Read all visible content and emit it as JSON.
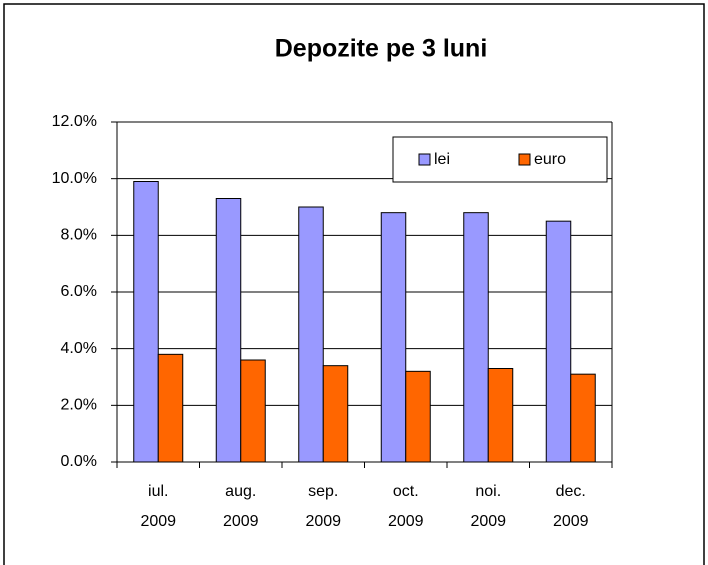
{
  "chart_data": {
    "type": "bar",
    "title": "Depozite pe 3 luni",
    "categories": [
      "iul. 2009",
      "aug. 2009",
      "sep. 2009",
      "oct. 2009",
      "noi. 2009",
      "dec. 2009"
    ],
    "series": [
      {
        "name": "lei",
        "color": "#9999ff",
        "values": [
          9.9,
          9.3,
          9.0,
          8.8,
          8.8,
          8.5
        ]
      },
      {
        "name": "euro",
        "color": "#ff6600",
        "values": [
          3.8,
          3.6,
          3.4,
          3.2,
          3.3,
          3.1
        ]
      }
    ],
    "ylim": [
      0,
      12
    ],
    "yticks": [
      {
        "value": 0,
        "label": "0.0%"
      },
      {
        "value": 2,
        "label": "2.0%"
      },
      {
        "value": 4,
        "label": "4.0%"
      },
      {
        "value": 6,
        "label": "6.0%"
      },
      {
        "value": 8,
        "label": "8.0%"
      },
      {
        "value": 10,
        "label": "10.0%"
      },
      {
        "value": 12,
        "label": "12.0%"
      }
    ],
    "grid": true,
    "legend": "top-right"
  }
}
